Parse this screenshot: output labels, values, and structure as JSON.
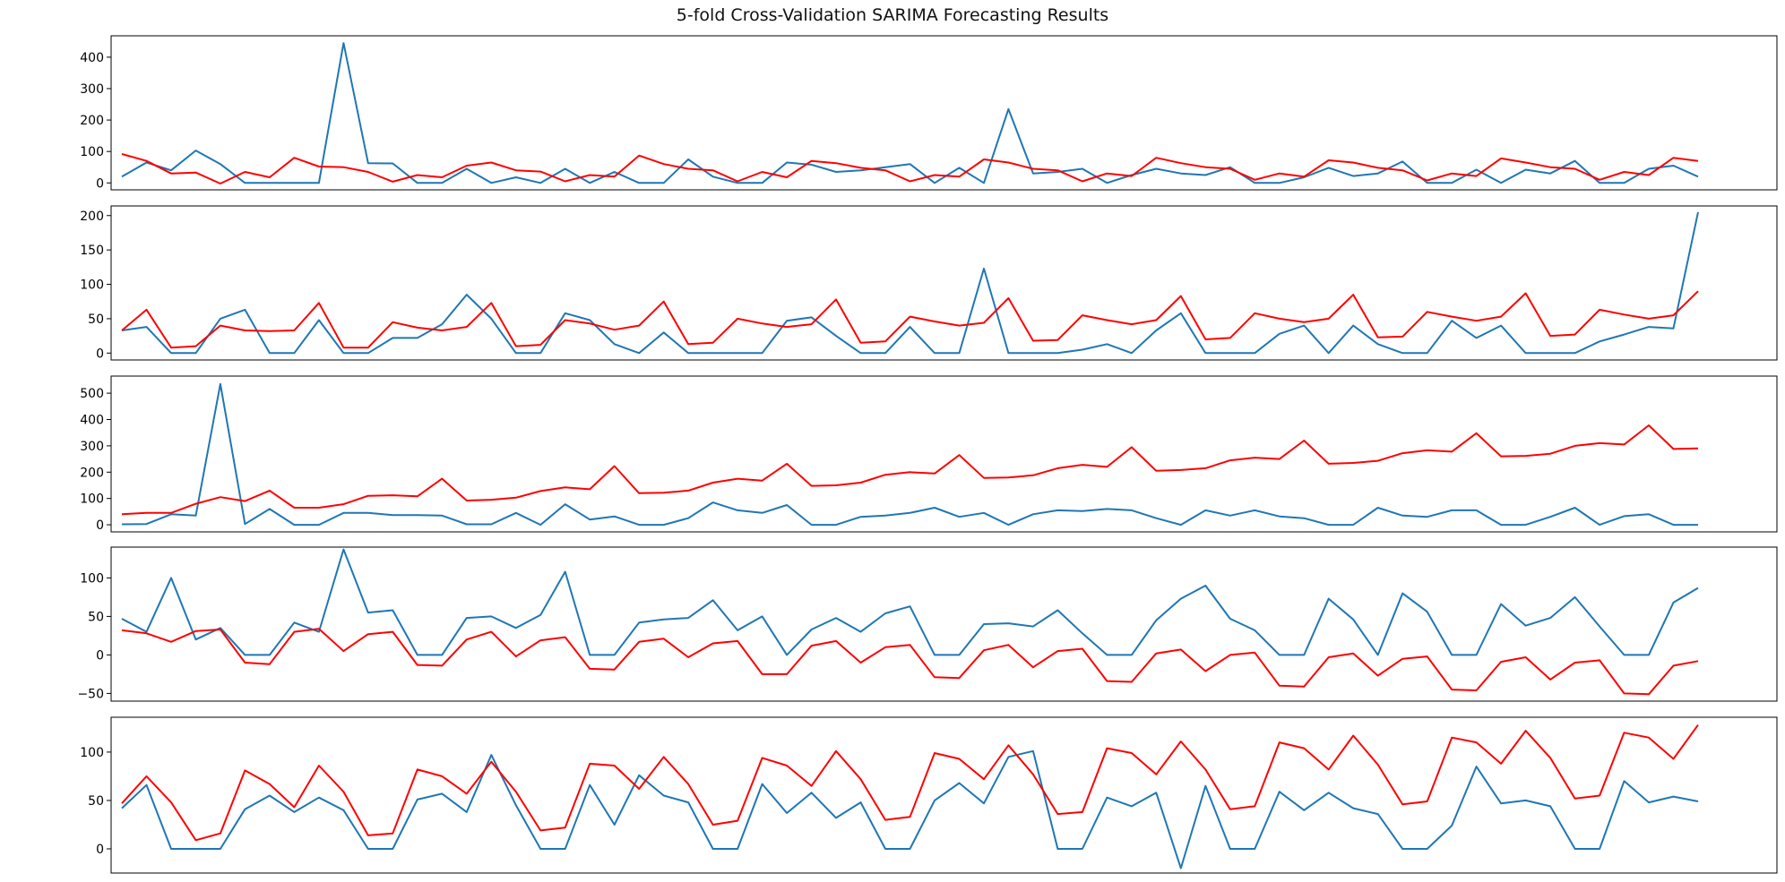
{
  "chart_data": {
    "title": "5-fold Cross-Validation SARIMA Forecasting Results",
    "colors": {
      "actual": "#1f77b4",
      "forecast": "#ff0000"
    },
    "subplots": [
      {
        "type": "line",
        "ylim": [
          -22,
          468
        ],
        "yticks": [
          0,
          100,
          200,
          300,
          400
        ],
        "series": [
          {
            "color": "#1f77b4",
            "values": [
              20,
              65,
              40,
              103,
              60,
              0,
              0,
              0,
              0,
              445,
              63,
              62,
              0,
              0,
              45,
              0,
              18,
              0,
              45,
              0,
              35,
              0,
              0,
              75,
              20,
              0,
              0,
              65,
              58,
              35,
              40,
              50,
              60,
              0,
              48,
              0,
              235,
              30,
              35,
              45,
              0,
              25,
              45,
              30,
              25,
              50,
              0,
              0,
              18,
              48,
              22,
              30,
              68,
              0,
              0,
              42,
              0,
              42,
              30,
              70,
              0,
              0,
              45,
              55,
              20
            ]
          },
          {
            "color": "#ff0000",
            "values": [
              92,
              70,
              30,
              33,
              -2,
              35,
              18,
              80,
              52,
              50,
              35,
              4,
              25,
              18,
              55,
              65,
              40,
              36,
              5,
              25,
              20,
              87,
              60,
              45,
              40,
              5,
              35,
              18,
              70,
              63,
              48,
              40,
              5,
              25,
              20,
              75,
              65,
              45,
              40,
              5,
              30,
              22,
              80,
              63,
              50,
              45,
              10,
              30,
              20,
              72,
              65,
              48,
              40,
              8,
              30,
              22,
              78,
              65,
              50,
              45,
              10,
              35,
              25,
              80,
              70
            ]
          }
        ]
      },
      {
        "type": "line",
        "ylim": [
          -10,
          214
        ],
        "yticks": [
          0,
          50,
          100,
          150,
          200
        ],
        "series": [
          {
            "color": "#1f77b4",
            "values": [
              33,
              38,
              0,
              0,
              50,
              63,
              0,
              0,
              48,
              0,
              0,
              22,
              22,
              42,
              85,
              50,
              0,
              0,
              58,
              48,
              13,
              0,
              30,
              0,
              0,
              0,
              0,
              47,
              52,
              25,
              0,
              0,
              38,
              0,
              0,
              123,
              0,
              0,
              0,
              5,
              13,
              0,
              33,
              58,
              0,
              0,
              0,
              28,
              40,
              0,
              40,
              13,
              0,
              0,
              47,
              22,
              40,
              0,
              0,
              0,
              17,
              27,
              38,
              36,
              205
            ]
          },
          {
            "color": "#ff0000",
            "values": [
              33,
              63,
              8,
              10,
              40,
              33,
              32,
              33,
              73,
              8,
              8,
              45,
              37,
              33,
              38,
              73,
              10,
              12,
              48,
              43,
              34,
              40,
              75,
              13,
              15,
              50,
              43,
              38,
              42,
              78,
              15,
              17,
              53,
              46,
              40,
              44,
              80,
              18,
              19,
              55,
              48,
              42,
              48,
              83,
              20,
              22,
              58,
              50,
              45,
              50,
              85,
              23,
              24,
              60,
              53,
              47,
              53,
              87,
              25,
              27,
              63,
              56,
              50,
              55,
              90
            ]
          }
        ]
      },
      {
        "type": "line",
        "ylim": [
          -27,
          565
        ],
        "yticks": [
          0,
          100,
          200,
          300,
          400,
          500
        ],
        "series": [
          {
            "color": "#1f77b4",
            "values": [
              2,
              3,
              40,
              35,
              535,
              3,
              60,
              0,
              0,
              45,
              45,
              37,
              37,
              35,
              2,
              2,
              45,
              0,
              78,
              20,
              32,
              0,
              0,
              25,
              85,
              55,
              45,
              75,
              0,
              0,
              30,
              35,
              45,
              65,
              30,
              45,
              0,
              40,
              55,
              52,
              60,
              55,
              25,
              0,
              55,
              35,
              55,
              32,
              25,
              0,
              0,
              65,
              35,
              30,
              55,
              55,
              0,
              0,
              30,
              65,
              0,
              33,
              40,
              0,
              0
            ]
          },
          {
            "color": "#ff0000",
            "values": [
              40,
              45,
              45,
              80,
              105,
              90,
              130,
              65,
              65,
              78,
              110,
              112,
              108,
              175,
              92,
              95,
              103,
              128,
              142,
              135,
              223,
              120,
              122,
              130,
              160,
              175,
              168,
              232,
              148,
              150,
              160,
              190,
              200,
              195,
              265,
              178,
              180,
              188,
              215,
              228,
              220,
              295,
              205,
              208,
              215,
              245,
              255,
              250,
              320,
              232,
              235,
              243,
              272,
              283,
              278,
              348,
              260,
              262,
              270,
              300,
              310,
              305,
              378,
              288,
              290
            ]
          }
        ]
      },
      {
        "type": "line",
        "ylim": [
          -60,
          140
        ],
        "yticks": [
          -50,
          0,
          50,
          100
        ],
        "series": [
          {
            "color": "#1f77b4",
            "values": [
              47,
              30,
              100,
              20,
              35,
              0,
              0,
              42,
              30,
              137,
              55,
              58,
              0,
              0,
              48,
              50,
              35,
              52,
              108,
              0,
              0,
              42,
              46,
              48,
              71,
              32,
              50,
              0,
              33,
              48,
              30,
              54,
              63,
              0,
              0,
              40,
              41,
              37,
              58,
              28,
              0,
              0,
              45,
              73,
              90,
              47,
              32,
              0,
              0,
              73,
              46,
              0,
              80,
              56,
              0,
              0,
              66,
              38,
              48,
              75,
              37,
              0,
              0,
              68,
              87
            ]
          },
          {
            "color": "#ff0000",
            "values": [
              32,
              28,
              17,
              31,
              33,
              -10,
              -12,
              30,
              34,
              5,
              27,
              30,
              -13,
              -14,
              20,
              30,
              -2,
              19,
              23,
              -18,
              -19,
              17,
              21,
              -3,
              15,
              18,
              -25,
              -25,
              12,
              18,
              -10,
              10,
              13,
              -29,
              -30,
              6,
              13,
              -16,
              5,
              8,
              -34,
              -35,
              2,
              7,
              -21,
              0,
              3,
              -40,
              -41,
              -3,
              2,
              -27,
              -5,
              -2,
              -45,
              -46,
              -9,
              -3,
              -32,
              -10,
              -7,
              -50,
              -51,
              -14,
              -8
            ]
          }
        ]
      },
      {
        "type": "line",
        "ylim": [
          -25,
          136
        ],
        "yticks": [
          0,
          50,
          100
        ],
        "series": [
          {
            "color": "#1f77b4",
            "values": [
              42,
              66,
              0,
              0,
              0,
              41,
              55,
              38,
              53,
              40,
              0,
              0,
              51,
              57,
              38,
              97,
              45,
              0,
              0,
              66,
              25,
              76,
              55,
              48,
              0,
              0,
              67,
              37,
              58,
              32,
              48,
              0,
              0,
              50,
              68,
              47,
              95,
              101,
              0,
              0,
              53,
              44,
              58,
              -20,
              65,
              0,
              0,
              59,
              40,
              58,
              42,
              36,
              0,
              0,
              24,
              85,
              47,
              50,
              44,
              0,
              0,
              70,
              48,
              54,
              49
            ]
          },
          {
            "color": "#ff0000",
            "values": [
              47,
              75,
              48,
              9,
              16,
              81,
              67,
              43,
              86,
              59,
              14,
              16,
              82,
              75,
              57,
              90,
              59,
              19,
              22,
              88,
              86,
              62,
              95,
              67,
              25,
              29,
              94,
              86,
              65,
              101,
              72,
              30,
              33,
              99,
              93,
              72,
              107,
              77,
              36,
              38,
              104,
              99,
              77,
              111,
              82,
              41,
              44,
              110,
              104,
              82,
              117,
              87,
              46,
              49,
              115,
              110,
              88,
              122,
              94,
              52,
              55,
              120,
              115,
              93,
              128
            ]
          }
        ]
      }
    ]
  }
}
